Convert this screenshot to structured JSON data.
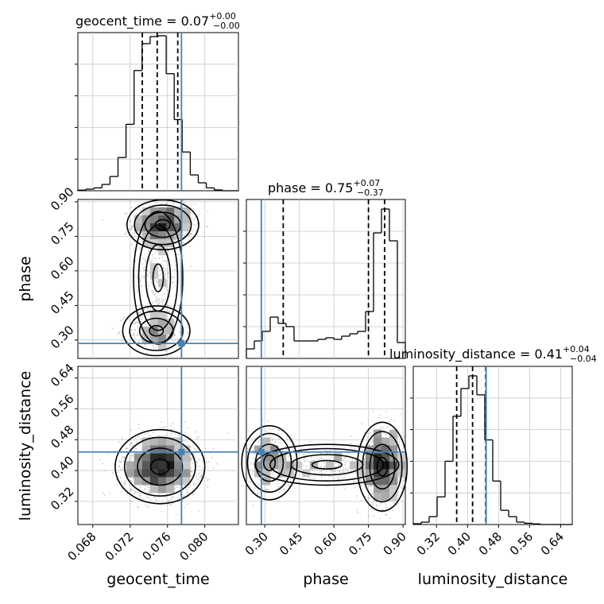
{
  "chart_data": {
    "type": "corner",
    "parameters": [
      "geocent_time",
      "phase",
      "luminosity_distance"
    ],
    "colors": {
      "truth": "#4682b4",
      "hist": "#000000",
      "grid": "#c8c8c8",
      "points": "#9a9a9a"
    },
    "grid": true,
    "titles": {
      "geocent_time": {
        "prefix": "geocent_time = ",
        "value": "0.07",
        "plus": "+0.00",
        "minus": "−0.00"
      },
      "phase": {
        "prefix": "phase = ",
        "value": "0.75",
        "plus": "+0.07",
        "minus": "−0.37"
      },
      "luminosity_distance": {
        "prefix": "luminosity_distance = ",
        "value": "0.41",
        "plus": "+0.04",
        "minus": "−0.04"
      }
    },
    "axis_labels": {
      "x": [
        "geocent_time",
        "phase",
        "luminosity_distance"
      ],
      "y": [
        "phase",
        "luminosity_distance"
      ]
    },
    "ranges": {
      "geocent_time": [
        0.0664,
        0.0836
      ],
      "phase": [
        0.22,
        0.91
      ],
      "luminosity_distance": [
        0.26,
        0.67
      ]
    },
    "ticks": {
      "geocent_time": {
        "values": [
          0.068,
          0.072,
          0.076,
          0.08
        ],
        "labels": [
          "0.068",
          "0.072",
          "0.076",
          "0.080"
        ]
      },
      "phase": {
        "values": [
          0.3,
          0.45,
          0.6,
          0.75,
          0.9
        ],
        "labels": [
          "0.30",
          "0.45",
          "0.60",
          "0.75",
          "0.90"
        ]
      },
      "luminosity_distance": {
        "values": [
          0.32,
          0.4,
          0.48,
          0.56,
          0.64
        ],
        "labels": [
          "0.32",
          "0.40",
          "0.48",
          "0.56",
          "0.64"
        ]
      }
    },
    "truths": {
      "geocent_time": 0.0775,
      "phase": 0.285,
      "luminosity_distance": 0.448
    },
    "quantiles": {
      "geocent_time": [
        0.0733,
        0.0749,
        0.0771
      ],
      "phase": [
        0.38,
        0.75,
        0.82
      ],
      "luminosity_distance": [
        0.372,
        0.413,
        0.447
      ]
    },
    "histograms": {
      "geocent_time": {
        "edges": [
          0.0664,
          0.06726,
          0.06812,
          0.06898,
          0.06984,
          0.0707,
          0.07156,
          0.07242,
          0.07328,
          0.07414,
          0.075,
          0.07586,
          0.07672,
          0.07758,
          0.07844,
          0.0793,
          0.08016,
          0.08102,
          0.08188,
          0.08274,
          0.0836
        ],
        "values": [
          0.004,
          0.01,
          0.018,
          0.04,
          0.09,
          0.21,
          0.42,
          0.76,
          0.93,
          0.975,
          0.98,
          0.74,
          0.45,
          0.245,
          0.1,
          0.05,
          0.018,
          0.005,
          0.0,
          0.0
        ]
      },
      "phase": {
        "edges": [
          0.22,
          0.2545,
          0.289,
          0.3235,
          0.358,
          0.3925,
          0.427,
          0.4615,
          0.496,
          0.5305,
          0.565,
          0.5995,
          0.634,
          0.6685,
          0.703,
          0.7375,
          0.772,
          0.8065,
          0.841,
          0.8755,
          0.91
        ],
        "values": [
          0.06,
          0.11,
          0.17,
          0.26,
          0.22,
          0.2,
          0.11,
          0.11,
          0.11,
          0.12,
          0.13,
          0.12,
          0.14,
          0.155,
          0.17,
          0.295,
          0.79,
          0.94,
          0.74,
          0.1
        ]
      },
      "luminosity_distance": {
        "edges": [
          0.26,
          0.2805,
          0.301,
          0.3215,
          0.342,
          0.3625,
          0.383,
          0.4035,
          0.424,
          0.4445,
          0.465,
          0.4855,
          0.506,
          0.5265,
          0.547,
          0.5675,
          0.588,
          0.6085,
          0.629,
          0.6495,
          0.67
        ],
        "values": [
          0.005,
          0.015,
          0.05,
          0.175,
          0.4,
          0.685,
          0.86,
          0.94,
          0.82,
          0.535,
          0.275,
          0.09,
          0.05,
          0.015,
          0.008,
          0.004,
          0.0,
          0.0,
          0.0,
          0.0
        ]
      }
    },
    "scatter_density": {
      "phase_vs_geocent_time": {
        "modes": [
          {
            "center": [
              0.0755,
              0.8
            ],
            "sigma": [
              0.0016,
              0.045
            ],
            "weight": 0.58
          },
          {
            "center": [
              0.0748,
              0.34
            ],
            "sigma": [
              0.0015,
              0.045
            ],
            "weight": 0.22
          },
          {
            "center": [
              0.075,
              0.57
            ],
            "sigma": [
              0.0011,
              0.12
            ],
            "weight": 0.2
          }
        ]
      },
      "luminosity_distance_vs_geocent_time": {
        "modes": [
          {
            "center": [
              0.0752,
              0.41
            ],
            "sigma": [
              0.002,
              0.04
            ],
            "weight": 1.0
          }
        ]
      },
      "luminosity_distance_vs_phase": {
        "modes": [
          {
            "center": [
              0.81,
              0.41
            ],
            "sigma": [
              0.045,
              0.048
            ],
            "weight": 0.58
          },
          {
            "center": [
              0.32,
              0.42
            ],
            "sigma": [
              0.05,
              0.04
            ],
            "weight": 0.24
          },
          {
            "center": [
              0.57,
              0.415
            ],
            "sigma": [
              0.13,
              0.022
            ],
            "weight": 0.18
          }
        ]
      }
    }
  }
}
